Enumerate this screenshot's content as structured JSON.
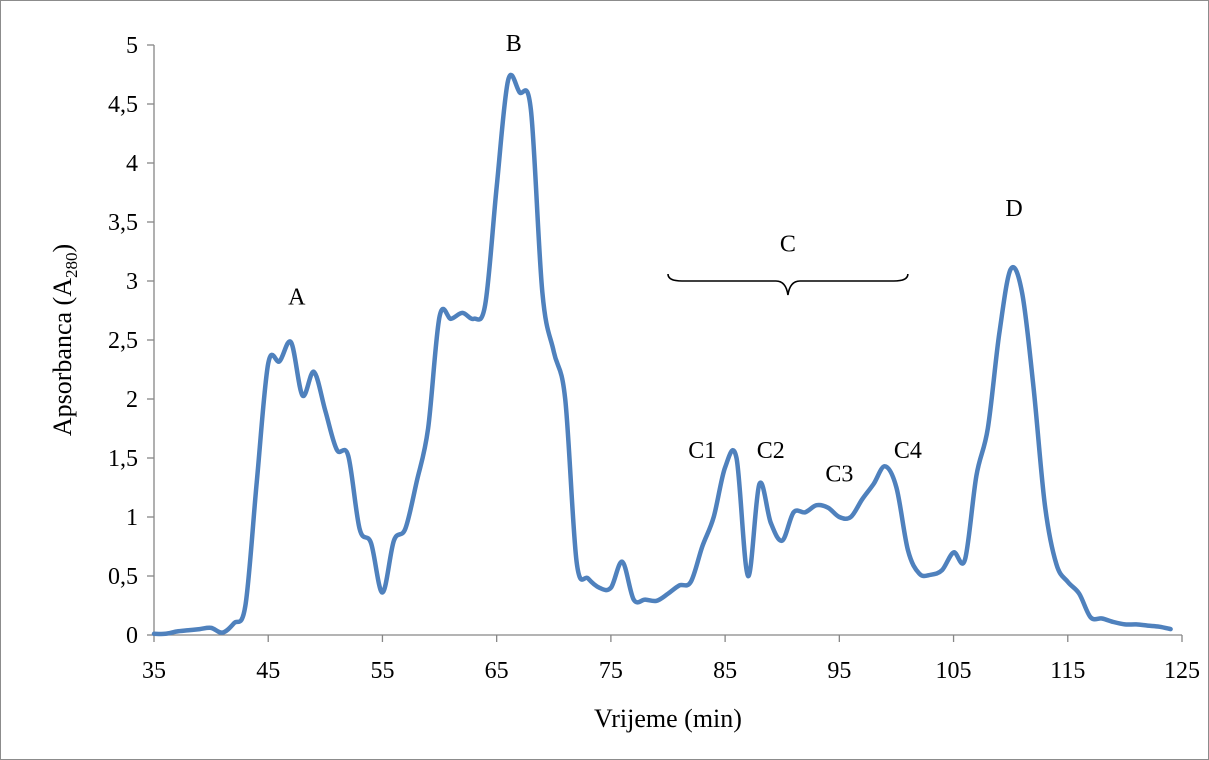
{
  "chart_data": {
    "type": "line",
    "title": "",
    "xlabel": "Vrijeme (min)",
    "ylabel_main": "Apsorbanca (A",
    "ylabel_sub": "280",
    "ylabel_close": ")",
    "xlim": [
      35,
      125
    ],
    "ylim": [
      0,
      5
    ],
    "x_ticks": [
      35,
      45,
      55,
      65,
      75,
      85,
      95,
      105,
      115,
      125
    ],
    "x_tick_labels": [
      "35",
      "45",
      "55",
      "65",
      "75",
      "85",
      "95",
      "105",
      "115",
      "125"
    ],
    "y_ticks": [
      0,
      0.5,
      1,
      1.5,
      2,
      2.5,
      3,
      3.5,
      4,
      4.5,
      5
    ],
    "y_tick_labels": [
      "0",
      "0,5",
      "1",
      "1,5",
      "2",
      "2,5",
      "3",
      "3,5",
      "4",
      "4,5",
      "5"
    ],
    "grid": false,
    "legend": "none",
    "series_color": "#4f81bd",
    "series": [
      {
        "x": [
          35,
          36,
          37,
          38,
          39,
          40,
          41,
          42,
          43,
          44,
          45,
          46,
          47,
          48,
          49,
          50,
          51,
          52,
          53,
          54,
          55,
          56,
          57,
          58,
          59,
          60,
          61,
          62,
          63,
          64,
          65,
          66,
          67,
          68,
          69,
          70,
          71,
          72,
          73,
          74,
          75,
          76,
          77,
          78,
          79,
          80,
          81,
          82,
          83,
          84,
          85,
          86,
          87,
          88,
          89,
          90,
          91,
          92,
          93,
          94,
          95,
          96,
          97,
          98,
          99,
          100,
          101,
          102,
          103,
          104,
          105,
          106,
          107,
          108,
          109,
          110,
          111,
          112,
          113,
          114,
          115,
          116,
          117,
          118,
          119,
          120,
          121,
          122,
          123,
          124
        ],
        "y": [
          0.01,
          0.01,
          0.03,
          0.04,
          0.05,
          0.06,
          0.02,
          0.1,
          0.25,
          1.3,
          2.3,
          2.32,
          2.48,
          2.03,
          2.23,
          1.9,
          1.57,
          1.52,
          0.9,
          0.78,
          0.36,
          0.8,
          0.9,
          1.3,
          1.75,
          2.7,
          2.68,
          2.73,
          2.68,
          2.8,
          3.8,
          4.7,
          4.6,
          4.45,
          2.9,
          2.4,
          2.0,
          0.62,
          0.48,
          0.4,
          0.4,
          0.62,
          0.3,
          0.3,
          0.29,
          0.35,
          0.42,
          0.45,
          0.75,
          1.0,
          1.42,
          1.5,
          0.5,
          1.28,
          0.95,
          0.8,
          1.04,
          1.04,
          1.1,
          1.08,
          1.0,
          1.0,
          1.15,
          1.28,
          1.43,
          1.25,
          0.72,
          0.52,
          0.51,
          0.55,
          0.7,
          0.64,
          1.35,
          1.75,
          2.55,
          3.1,
          2.9,
          2.1,
          1.1,
          0.6,
          0.45,
          0.35,
          0.15,
          0.14,
          0.11,
          0.09,
          0.09,
          0.08,
          0.07,
          0.05
        ]
      }
    ],
    "annotations": [
      {
        "id": "A",
        "text": "A",
        "x": 47.5,
        "y": 2.8
      },
      {
        "id": "B",
        "text": "B",
        "x": 66.5,
        "y": 4.95
      },
      {
        "id": "C",
        "text": "C",
        "x": 90.5,
        "y": 3.25
      },
      {
        "id": "C1",
        "text": "C1",
        "x": 83.0,
        "y": 1.5
      },
      {
        "id": "C2",
        "text": "C2",
        "x": 89.0,
        "y": 1.5
      },
      {
        "id": "C3",
        "text": "C3",
        "x": 95.0,
        "y": 1.3
      },
      {
        "id": "C4",
        "text": "C4",
        "x": 101.0,
        "y": 1.5
      },
      {
        "id": "D",
        "text": "D",
        "x": 110.3,
        "y": 3.55
      }
    ],
    "brace": {
      "label_id": "C",
      "x_start": 80.0,
      "x_end": 101.0,
      "y": 3.0
    }
  }
}
